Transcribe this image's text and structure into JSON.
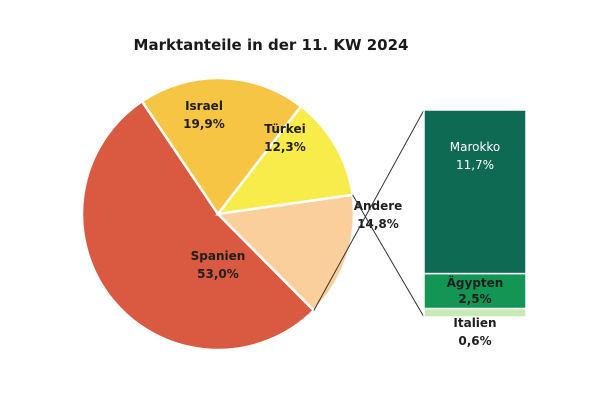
{
  "chart_data": [
    {
      "type": "pie",
      "title": "Marktanteile in der 11. KW 2024",
      "slices": [
        {
          "name": "Spanien",
          "value": 53.0,
          "value_label": "53,0%",
          "color": "#d95a40"
        },
        {
          "name": "Israel",
          "value": 19.9,
          "value_label": "19,9%",
          "color": "#f7c544"
        },
        {
          "name": "Türkei",
          "value": 12.3,
          "value_label": "12,3%",
          "color": "#f8ec4a"
        },
        {
          "name": "Andere",
          "value": 14.8,
          "value_label": "14,8%",
          "color": "#fbcf9c"
        }
      ]
    },
    {
      "type": "bar",
      "stacked": true,
      "breakdown_of": "Andere",
      "segments": [
        {
          "name": "Marokko",
          "value": 11.7,
          "value_label": "11,7%",
          "color": "#0e6a52"
        },
        {
          "name": "Ägypten",
          "value": 2.5,
          "value_label": "2,5%",
          "color": "#139653"
        },
        {
          "name": "Italien",
          "value": 0.6,
          "value_label": "0,6%",
          "color": "#c7e9b4"
        }
      ]
    }
  ]
}
